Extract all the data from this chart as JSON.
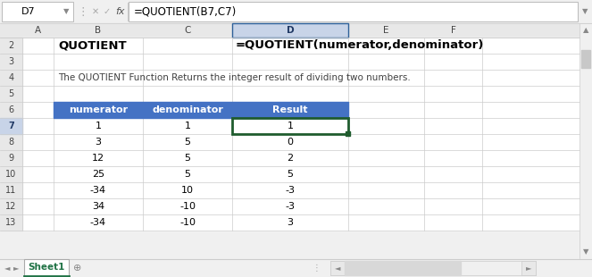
{
  "cell_ref": "D7",
  "formula_bar": "=QUOTIENT(B7,C7)",
  "title_left": "QUOTIENT",
  "title_right": "=QUOTIENT(numerator,denominator)",
  "description": "The QUOTIENT Function Returns the integer result of dividing two numbers.",
  "headers": [
    "numerator",
    "denominator",
    "Result"
  ],
  "rows": [
    [
      1,
      1,
      1
    ],
    [
      3,
      5,
      0
    ],
    [
      12,
      5,
      2
    ],
    [
      25,
      5,
      5
    ],
    [
      -34,
      10,
      -3
    ],
    [
      34,
      -10,
      -3
    ],
    [
      -34,
      -10,
      3
    ]
  ],
  "col_letters": [
    "A",
    "B",
    "C",
    "D",
    "E",
    "F"
  ],
  "header_bg": "#4472C4",
  "header_fg": "#FFFFFF",
  "tab_text": "Sheet1",
  "description_color": "#404040"
}
